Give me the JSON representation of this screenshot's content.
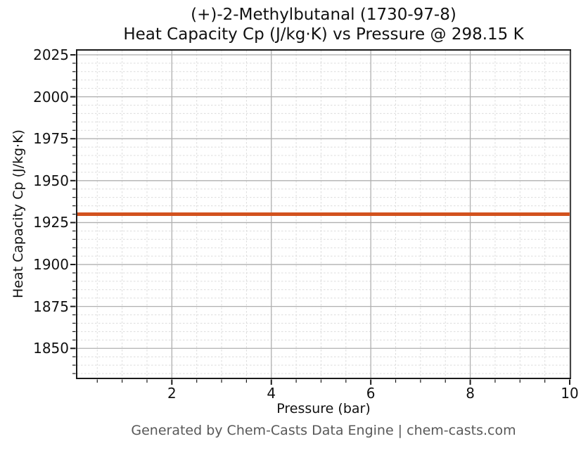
{
  "chart_data": {
    "type": "line",
    "title_line1": "(+)-2-Methylbutanal (1730-97-8)",
    "title_line2": "Heat Capacity Cp (J/kg·K) vs Pressure @ 298.15 K",
    "compound": "(+)-2-Methylbutanal",
    "cas_number": "1730-97-8",
    "temperature_label": "298.15 K",
    "xlabel": "Pressure (bar)",
    "ylabel": "Heat Capacity Cp (J/kg·K)",
    "xlim": [
      0.1,
      10
    ],
    "ylim": [
      1832.5,
      2027.5
    ],
    "x_major_ticks": [
      2,
      4,
      6,
      8,
      10
    ],
    "x_minor_step": 0.5,
    "y_major_ticks": [
      1850,
      1875,
      1900,
      1925,
      1950,
      1975,
      2000,
      2025
    ],
    "y_minor_step": 5,
    "grid": {
      "major_color": "#b0b0b0",
      "minor_color": "#dcdcdc",
      "minor_dashed": true
    },
    "axis_color": "#1a1a1a",
    "series": [
      {
        "name": "Heat Capacity Cp",
        "color": "#d2521e",
        "line_width": 5,
        "x": [
          0.1,
          10
        ],
        "y": [
          1930,
          1930
        ],
        "constant_value": 1930
      }
    ]
  },
  "footer": {
    "text": "Generated by Chem-Casts Data Engine | chem-casts.com"
  }
}
